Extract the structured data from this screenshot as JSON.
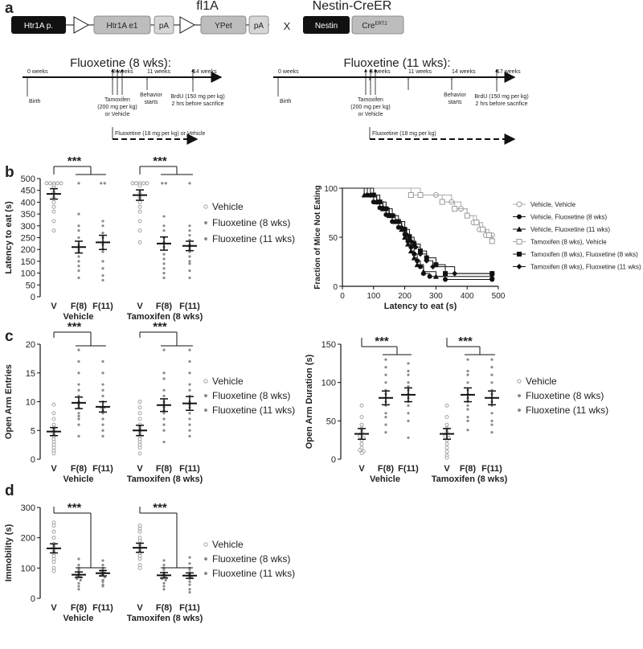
{
  "colors": {
    "dark": "#111111",
    "gray_box": "#bdbdbd",
    "open_point": "#9a9a9a",
    "gray_point": "#8a8a8a"
  },
  "panel_a": {
    "letter": "a",
    "construct_title": "fl1A",
    "cross_symbol": "X",
    "nestin_title": "Nestin-CreER",
    "boxes": {
      "promoter": "Htr1A p.",
      "exon": "Htr1A e1",
      "pa1": "pA",
      "ypet": "YPet",
      "pa2": "pA",
      "nestin": "Nestin",
      "cre": "Cre",
      "cre_sup": "ERT2"
    },
    "timelines": [
      {
        "title": "Fluoxetine (8 wks):",
        "weeks": [
          "0 weeks",
          "8 weeks",
          "11 weeks",
          "14 weeks"
        ],
        "birth": "Birth",
        "tamoxifen": [
          "Tamoxifen",
          "(200 mg per kg)",
          "or Vehicle"
        ],
        "behavior": [
          "Behavior",
          "starts"
        ],
        "brdu": [
          "BrdU (150 mg per kg)",
          "2 hrs before sacrifice"
        ],
        "treatment": "Fluoxetine (18 mg per kg) or Vehicle"
      },
      {
        "title": "Fluoxetine (11 wks):",
        "weeks": [
          "0 weeks",
          "8 weeks",
          "11 weeks",
          "14 weeks",
          "17 weeks"
        ],
        "birth": "Birth",
        "tamoxifen": [
          "Tamoxifen",
          "(200 mg per kg)",
          "or Vehicle"
        ],
        "behavior": [
          "Behavior",
          "starts"
        ],
        "brdu": [
          "BrdU (150 mg per kg)",
          "2 hrs before sacrifice"
        ],
        "treatment": "Fluoxetine (18 mg per kg)"
      }
    ]
  },
  "legend_groups": [
    "Vehicle",
    "Fluoxetine (8 wks)",
    "Fluoxetine (11 wks)"
  ],
  "panel_letters": {
    "b": "b",
    "c": "c",
    "d": "d"
  },
  "chart_data": [
    {
      "type": "scatter",
      "panel": "b-left",
      "ylabel": "Latency to eat (s)",
      "ylim": [
        0,
        500
      ],
      "yticks": [
        0,
        50,
        100,
        150,
        200,
        250,
        300,
        350,
        400,
        450,
        500
      ],
      "categories": [
        "V",
        "F(8)",
        "F(11)",
        "V",
        "F(8)",
        "F(11)"
      ],
      "group_labels": [
        "Vehicle",
        "Tamoxifen (8 wks)"
      ],
      "means": [
        435,
        210,
        230,
        430,
        225,
        215
      ],
      "sems": [
        22,
        25,
        30,
        22,
        28,
        20
      ],
      "points": [
        [
          480,
          480,
          480,
          480,
          480,
          470,
          460,
          440,
          420,
          400,
          380,
          360,
          320,
          280
        ],
        [
          480,
          350,
          300,
          280,
          250,
          220,
          210,
          200,
          190,
          170,
          150,
          130,
          110,
          80
        ],
        [
          480,
          480,
          320,
          300,
          270,
          250,
          230,
          220,
          200,
          190,
          150,
          120,
          90,
          70
        ],
        [
          480,
          480,
          480,
          480,
          480,
          470,
          440,
          420,
          400,
          380,
          360,
          320,
          280,
          230
        ],
        [
          480,
          480,
          340,
          300,
          280,
          250,
          230,
          210,
          180,
          160,
          140,
          120,
          100,
          80
        ],
        [
          480,
          300,
          280,
          260,
          240,
          220,
          210,
          200,
          190,
          170,
          150,
          140,
          110,
          80
        ]
      ],
      "significance": [
        "***",
        "***"
      ]
    },
    {
      "type": "line",
      "panel": "b-right",
      "xlabel": "Latency to eat (s)",
      "ylabel": "Fraction of Mice Not Eating",
      "xlim": [
        0,
        500
      ],
      "ylim": [
        0,
        100
      ],
      "xticks": [
        0,
        100,
        200,
        300,
        400,
        500
      ],
      "yticks": [
        0,
        50,
        100
      ],
      "series": [
        {
          "name": "Vehicle, Vehicle",
          "marker": "open-circle",
          "x": [
            0,
            250,
            300,
            350,
            380,
            400,
            420,
            440,
            460,
            480
          ],
          "y": [
            100,
            93,
            93,
            86,
            79,
            72,
            65,
            58,
            52,
            52
          ]
        },
        {
          "name": "Vehicle, Fluoxetine (8 wks)",
          "marker": "filled-circle",
          "x": [
            0,
            80,
            100,
            120,
            140,
            160,
            180,
            200,
            210,
            220,
            230,
            240,
            250,
            260,
            280,
            330,
            480
          ],
          "y": [
            100,
            93,
            86,
            80,
            73,
            66,
            60,
            53,
            46,
            40,
            33,
            26,
            20,
            13,
            10,
            7,
            7
          ]
        },
        {
          "name": "Vehicle, Fluoxetine (11 wks)",
          "marker": "filled-triangle",
          "x": [
            0,
            70,
            90,
            110,
            130,
            150,
            170,
            190,
            200,
            210,
            220,
            230,
            240,
            260,
            300,
            480
          ],
          "y": [
            100,
            93,
            93,
            86,
            79,
            72,
            66,
            58,
            50,
            43,
            36,
            29,
            22,
            15,
            10,
            10
          ]
        },
        {
          "name": "Tamoxifen (8 wks), Vehicle",
          "marker": "open-square",
          "x": [
            0,
            220,
            250,
            320,
            360,
            400,
            430,
            450,
            470,
            480
          ],
          "y": [
            100,
            93,
            93,
            86,
            79,
            72,
            65,
            58,
            52,
            46
          ]
        },
        {
          "name": "Tamoxifen (8 wks), Fluoxetine (8 wks)",
          "marker": "filled-square",
          "x": [
            0,
            100,
            120,
            140,
            160,
            180,
            200,
            215,
            230,
            250,
            270,
            300,
            330,
            480
          ],
          "y": [
            100,
            93,
            86,
            79,
            72,
            66,
            58,
            50,
            43,
            36,
            29,
            22,
            13,
            13
          ]
        },
        {
          "name": "Tamoxifen (8 wks), Fluoxetine (11 wks)",
          "marker": "filled-diamond",
          "x": [
            0,
            90,
            110,
            130,
            150,
            170,
            190,
            205,
            220,
            235,
            250,
            270,
            290,
            360,
            480
          ],
          "y": [
            100,
            93,
            86,
            80,
            73,
            66,
            60,
            53,
            46,
            40,
            33,
            26,
            20,
            13,
            13
          ]
        }
      ]
    },
    {
      "type": "scatter",
      "panel": "c-left",
      "ylabel": "Open Arm Entries",
      "ylim": [
        0,
        20
      ],
      "yticks": [
        0,
        5,
        10,
        15,
        20
      ],
      "categories": [
        "V",
        "F(8)",
        "F(11)",
        "V",
        "F(8)",
        "F(11)"
      ],
      "group_labels": [
        "Vehicle",
        "Tamoxifen (8 wks)"
      ],
      "means": [
        4.8,
        9.8,
        9.1,
        5.0,
        9.4,
        9.7
      ],
      "sems": [
        0.7,
        1.0,
        0.9,
        0.9,
        1.1,
        1.2
      ],
      "points": [
        [
          9.5,
          8.0,
          7.0,
          6.0,
          5.5,
          5.0,
          4.5,
          4.0,
          3.5,
          3.0,
          2.5,
          2.0,
          1.5,
          1.0
        ],
        [
          19.0,
          17.0,
          15.0,
          13.0,
          12.0,
          11.0,
          10.0,
          9.5,
          9.0,
          8.0,
          7.5,
          7.0,
          6.0,
          4.0
        ],
        [
          17.0,
          15.0,
          13.0,
          12.0,
          11.0,
          10.0,
          9.0,
          9.0,
          8.5,
          8.0,
          7.0,
          6.0,
          5.0,
          4.0
        ],
        [
          10.0,
          9.0,
          8.0,
          7.0,
          6.0,
          5.5,
          5.0,
          4.5,
          4.0,
          3.5,
          3.0,
          2.5,
          2.0,
          1.0
        ],
        [
          19.0,
          15.0,
          14.0,
          12.0,
          11.0,
          10.0,
          9.5,
          9.0,
          8.5,
          8.0,
          7.0,
          6.0,
          5.0,
          3.0
        ],
        [
          19.0,
          17.0,
          15.0,
          13.0,
          12.0,
          11.0,
          10.0,
          9.5,
          9.0,
          8.0,
          7.0,
          6.0,
          5.0,
          4.0
        ]
      ],
      "significance": [
        "***",
        "***"
      ]
    },
    {
      "type": "scatter",
      "panel": "c-right",
      "ylabel": "Open Arm Duration (s)",
      "ylim": [
        0,
        150
      ],
      "yticks": [
        0,
        50,
        100,
        150
      ],
      "categories": [
        "V",
        "F(8)",
        "F(11)",
        "V",
        "F(8)",
        "F(11)"
      ],
      "group_labels": [
        "Vehicle",
        "Tamoxifen (8 wks)"
      ],
      "means": [
        33,
        80,
        84,
        33,
        84,
        80
      ],
      "sems": [
        7,
        9,
        9,
        7,
        9,
        9
      ],
      "points": [
        [
          70,
          55,
          45,
          40,
          35,
          30,
          28,
          25,
          20,
          15,
          12,
          10,
          8
        ],
        [
          130,
          120,
          110,
          100,
          90,
          85,
          80,
          75,
          70,
          60,
          55,
          45,
          35
        ],
        [
          125,
          115,
          110,
          100,
          95,
          90,
          85,
          80,
          75,
          70,
          60,
          50,
          28
        ],
        [
          70,
          55,
          45,
          40,
          35,
          30,
          28,
          25,
          20,
          15,
          10,
          5,
          2
        ],
        [
          130,
          115,
          110,
          100,
          90,
          85,
          80,
          75,
          70,
          65,
          55,
          50,
          38
        ],
        [
          130,
          120,
          110,
          100,
          90,
          85,
          80,
          75,
          70,
          60,
          50,
          45,
          35
        ]
      ],
      "significance": [
        "***",
        "***"
      ]
    },
    {
      "type": "scatter",
      "panel": "d",
      "ylabel": "Immobility (s)",
      "ylim": [
        0,
        300
      ],
      "yticks": [
        0,
        100,
        200,
        300
      ],
      "categories": [
        "V",
        "F(8)",
        "F(11)",
        "V",
        "F(8)",
        "F(11)"
      ],
      "group_labels": [
        "Vehicle",
        "Tamoxifen (8 wks)"
      ],
      "means": [
        165,
        78,
        83,
        167,
        76,
        75
      ],
      "sems": [
        15,
        9,
        9,
        15,
        9,
        9
      ],
      "points": [
        [
          250,
          240,
          220,
          200,
          180,
          170,
          160,
          150,
          140,
          130,
          120,
          100,
          90
        ],
        [
          130,
          110,
          100,
          95,
          90,
          80,
          75,
          70,
          65,
          60,
          50,
          40,
          30
        ],
        [
          125,
          110,
          100,
          95,
          90,
          85,
          80,
          75,
          70,
          60,
          55,
          45,
          40
        ],
        [
          240,
          230,
          220,
          200,
          190,
          180,
          170,
          160,
          150,
          140,
          130,
          110,
          100
        ],
        [
          125,
          110,
          100,
          95,
          85,
          80,
          75,
          70,
          65,
          60,
          50,
          40,
          30
        ],
        [
          135,
          115,
          100,
          95,
          85,
          80,
          75,
          70,
          65,
          55,
          45,
          30,
          20
        ]
      ],
      "significance": [
        "***",
        "***"
      ]
    }
  ]
}
